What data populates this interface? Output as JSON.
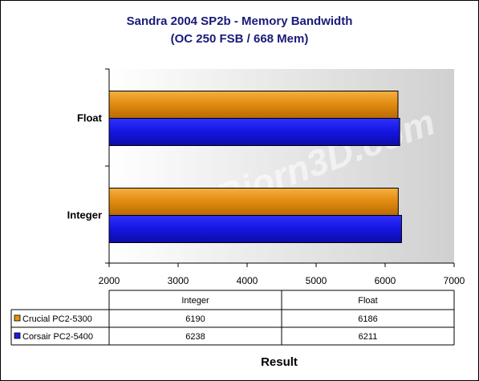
{
  "chart_data": {
    "type": "bar",
    "orientation": "horizontal",
    "title_line1": "Sandra 2004 SP2b - Memory Bandwidth",
    "title_line2": "(OC 250 FSB / 668 Mem)",
    "categories": [
      "Integer",
      "Float"
    ],
    "categories_plot_order": [
      "Float",
      "Integer"
    ],
    "series": [
      {
        "name": "Crucial PC2-5300",
        "color": "#e8900f",
        "values": [
          6190,
          6186
        ]
      },
      {
        "name": "Corsair PC2-5400",
        "color": "#1a1ae6",
        "values": [
          6238,
          6211
        ]
      }
    ],
    "xlim": [
      2000,
      7000
    ],
    "ticks": [
      "2000",
      "3000",
      "4000",
      "5000",
      "6000",
      "7000"
    ],
    "xlabel": "Result",
    "watermark": "www.Bjorn3D.com",
    "data_table": {
      "headers": [
        "Integer",
        "Float"
      ],
      "rows": [
        {
          "label": "Crucial PC2-5300",
          "values": [
            "6190",
            "6186"
          ]
        },
        {
          "label": "Corsair PC2-5400",
          "values": [
            "6238",
            "6211"
          ]
        }
      ]
    }
  }
}
